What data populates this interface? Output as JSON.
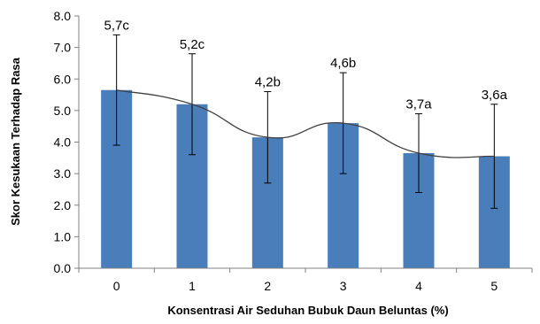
{
  "chart_data": {
    "type": "bar",
    "xlabel": "Konsentrasi  Air Seduhan Bubuk Daun Beluntas (%)",
    "ylabel": "Skor Kesukaan Terhadap Rasa",
    "categories": [
      "0",
      "1",
      "2",
      "3",
      "4",
      "5"
    ],
    "values": [
      5.65,
      5.2,
      4.15,
      4.6,
      3.65,
      3.55
    ],
    "error_low": [
      3.9,
      3.6,
      2.7,
      3.0,
      2.4,
      1.9
    ],
    "error_high": [
      7.4,
      6.8,
      5.6,
      6.2,
      4.9,
      5.2
    ],
    "data_labels": [
      "5,7c",
      "5,2c",
      "4,2b",
      "4,6b",
      "3,7a",
      "3,6a"
    ],
    "ylim": [
      0,
      8
    ],
    "yticks": [
      "0.0",
      "1.0",
      "2.0",
      "3.0",
      "4.0",
      "5.0",
      "6.0",
      "7.0",
      "8.0"
    ],
    "trendline": "smooth curve through bar tops",
    "grid": false,
    "bar_color": "#4a7ebb",
    "trend_color": "#404040"
  }
}
